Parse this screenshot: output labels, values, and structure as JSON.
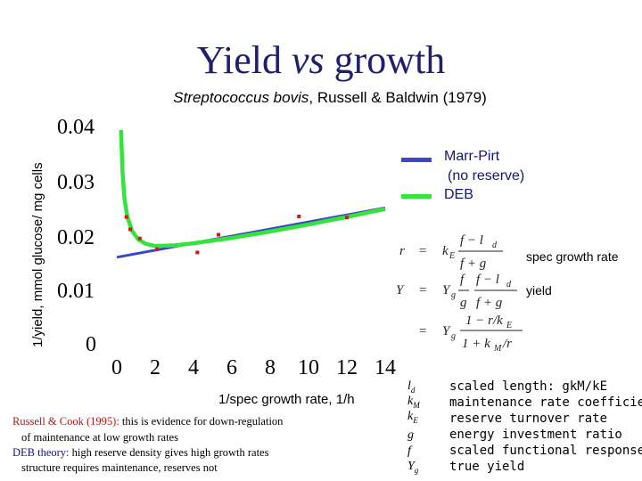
{
  "slide": {
    "title_pre": "Yield ",
    "title_em": "vs",
    "title_post": " growth",
    "subtitle_em": "Streptococcus bovis",
    "subtitle_rest": ", Russell & Baldwin (1979)"
  },
  "legend": {
    "marr_pirt": "Marr-Pirt",
    "no_reserve": "(no reserve)",
    "deb": "DEB",
    "colors": {
      "marr_pirt": "#3a48c8",
      "deb": "#34e43a",
      "points": "#d11717"
    }
  },
  "formulas": {
    "r_label": "spec growth rate",
    "y_label": "yield"
  },
  "notes": {
    "line1_red": "Russell & Cook (1995):",
    "line1_rest": " this is evidence for down-regulation",
    "line2": "of maintenance at low growth rates",
    "line3_blue": "DEB theory:",
    "line3_rest": " high reserve density gives high growth rates",
    "line4": "structure requires maintenance, reserves not"
  },
  "glossary": [
    {
      "sym": "ld",
      "text": "scaled length: gkM/kE"
    },
    {
      "sym": "kM",
      "text": "maintenance rate coefficient"
    },
    {
      "sym": "kE",
      "text": "reserve turnover rate"
    },
    {
      "sym": "g",
      "text": "energy investment ratio"
    },
    {
      "sym": "f",
      "text": "scaled functional response"
    },
    {
      "sym": "Yg",
      "text": "true yield"
    }
  ],
  "chart_data": {
    "type": "scatter",
    "xlabel": "1/spec growth rate, 1/h",
    "ylabel": "1/yield, mmol glucose/ mg cells",
    "x_ticks": [
      "0",
      "2",
      "4",
      "6",
      "8",
      "10",
      "12",
      "14"
    ],
    "y_ticks": [
      "0",
      "0.01",
      "0.02",
      "0.03",
      "0.04"
    ],
    "xlim": [
      0,
      14
    ],
    "ylim": [
      0,
      0.04
    ],
    "points": [
      {
        "x": 0.5,
        "y": 0.0238
      },
      {
        "x": 0.7,
        "y": 0.0215
      },
      {
        "x": 1.2,
        "y": 0.0198
      },
      {
        "x": 2.1,
        "y": 0.0178
      },
      {
        "x": 4.2,
        "y": 0.0172
      },
      {
        "x": 5.3,
        "y": 0.0205
      },
      {
        "x": 9.5,
        "y": 0.0239
      },
      {
        "x": 12.0,
        "y": 0.0237
      }
    ],
    "series": [
      {
        "name": "Marr-Pirt",
        "values": [
          [
            0,
            0.0163
          ],
          [
            14,
            0.0255
          ]
        ]
      },
      {
        "name": "DEB",
        "values": [
          [
            0.22,
            0.04
          ],
          [
            0.3,
            0.032
          ],
          [
            0.4,
            0.0272
          ],
          [
            0.55,
            0.0238
          ],
          [
            0.8,
            0.0212
          ],
          [
            1.1,
            0.0197
          ],
          [
            1.5,
            0.0188
          ],
          [
            2.0,
            0.0184
          ],
          [
            3.0,
            0.0185
          ],
          [
            4.0,
            0.0189
          ],
          [
            6.0,
            0.0199
          ],
          [
            8.0,
            0.0211
          ],
          [
            10.0,
            0.0224
          ],
          [
            12.0,
            0.0238
          ],
          [
            14.0,
            0.0253
          ]
        ]
      }
    ]
  }
}
